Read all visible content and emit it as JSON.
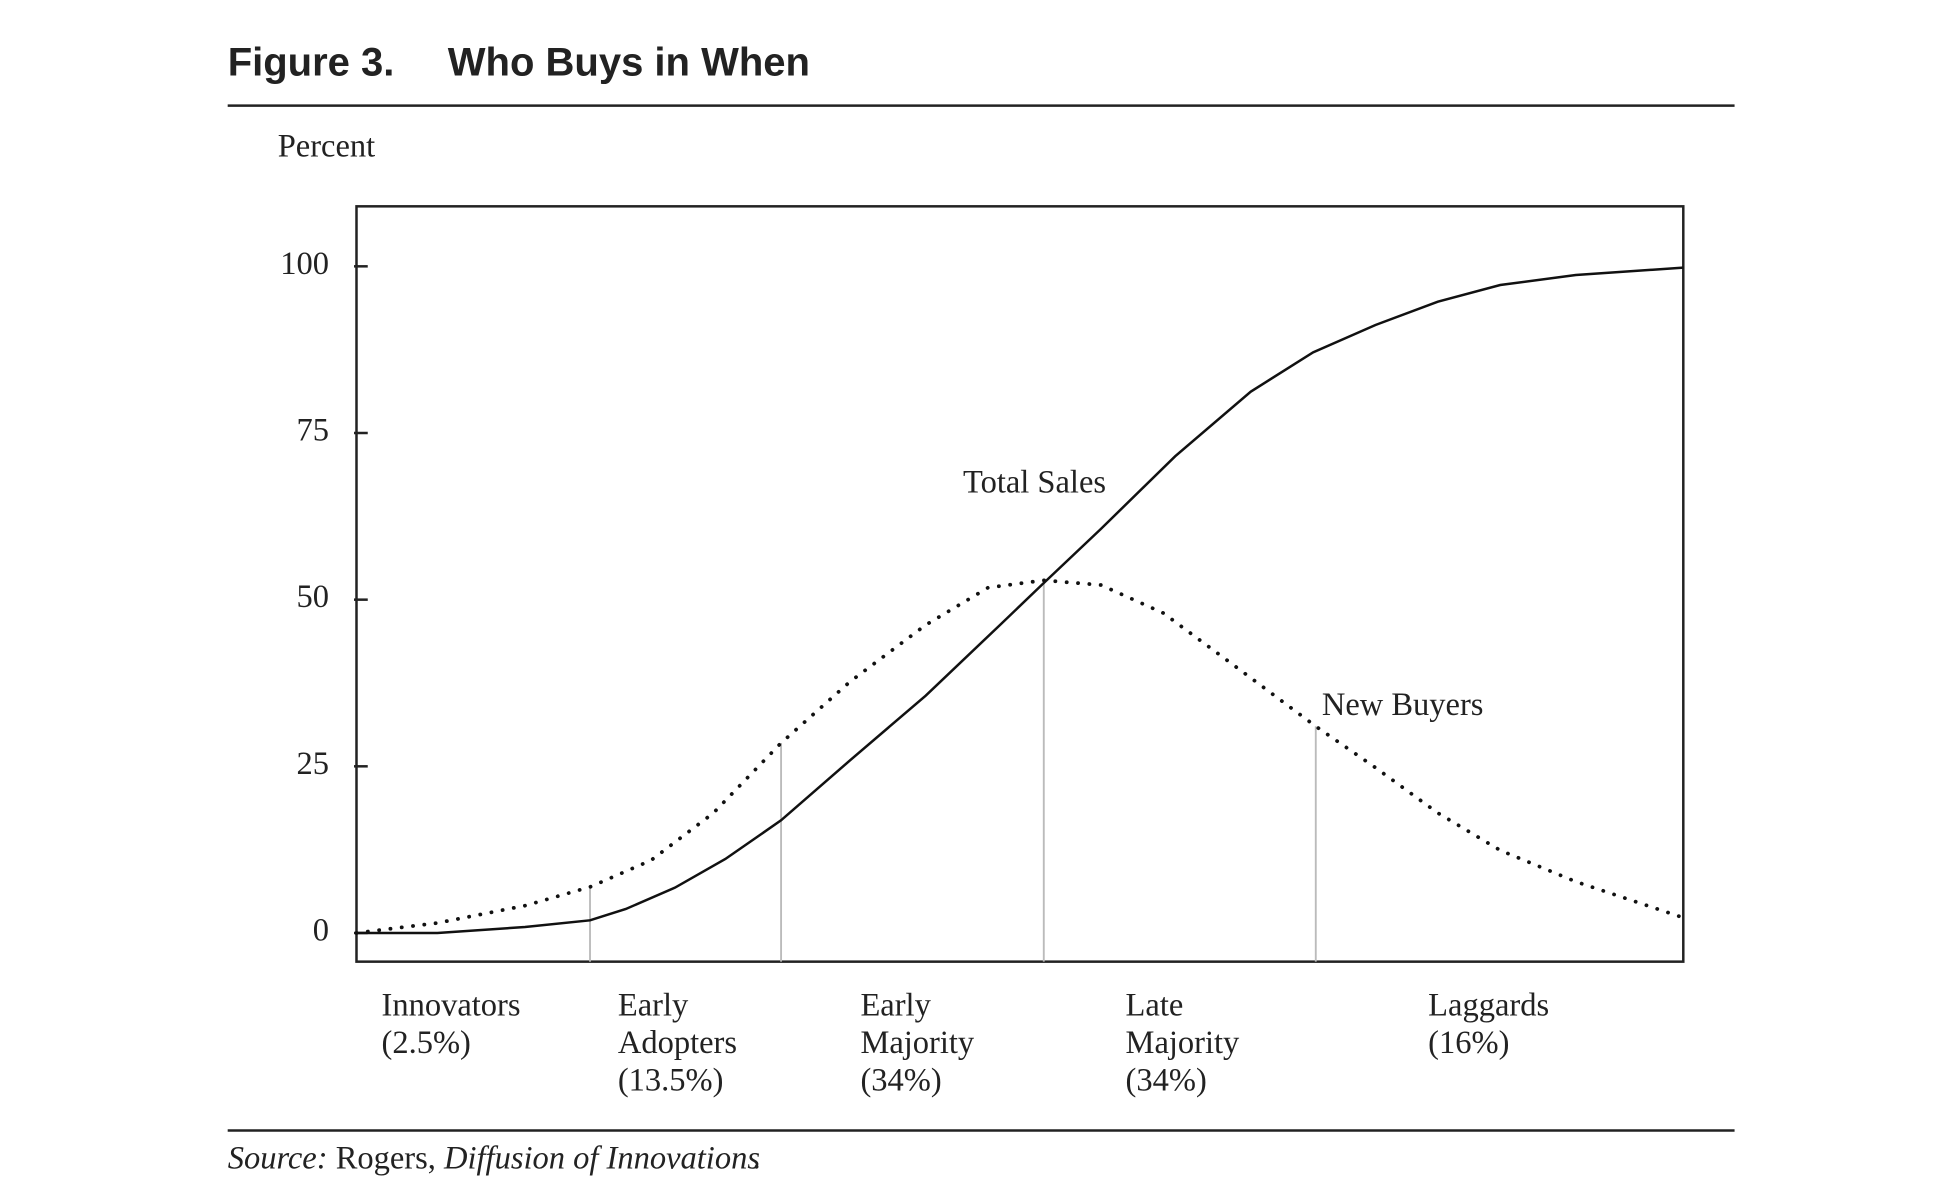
{
  "chart_data": {
    "type": "line",
    "figure_label": "Figure 3.",
    "title": "Who Buys in When",
    "y_label": "Percent",
    "ylim": [
      -4.3,
      109
    ],
    "yticks": [
      0,
      25,
      50,
      75,
      100
    ],
    "xlim": [
      0,
      100
    ],
    "series": [
      {
        "name": "Total Sales",
        "color": "#111111",
        "style": "solid",
        "x": [
          0,
          6.1,
          12.7,
          17.6,
          20.3,
          24.0,
          27.8,
          32.0,
          37.2,
          42.9,
          48.5,
          51.8,
          56.1,
          61.7,
          67.4,
          72.1,
          76.8,
          81.5,
          86.2,
          91.9,
          100
        ],
        "values": [
          0,
          0,
          0.9,
          1.9,
          3.6,
          6.8,
          11.1,
          16.9,
          25.9,
          35.6,
          46.2,
          52.5,
          60.6,
          71.5,
          81.2,
          87.1,
          91.2,
          94.7,
          97.2,
          98.7,
          99.8
        ]
      },
      {
        "name": "New Buyers",
        "color": "#111111",
        "style": "dotted",
        "x": [
          0,
          6.1,
          12.7,
          17.6,
          22.2,
          26.9,
          32.0,
          37.2,
          42.9,
          47.6,
          51.8,
          56.1,
          60.8,
          66.5,
          72.3,
          76.8,
          81.5,
          86.2,
          91.9,
          100
        ],
        "values": [
          0,
          1.5,
          4.1,
          6.9,
          10.9,
          18.0,
          28.5,
          37.7,
          46.2,
          51.8,
          52.9,
          52.2,
          48.0,
          39.6,
          31.0,
          24.8,
          18.0,
          12.4,
          7.7,
          2.3
        ]
      }
    ],
    "dividers": {
      "color": "#bbbbbb",
      "x": [
        17.6,
        32.0,
        51.8,
        72.3
      ],
      "values": [
        6.9,
        28.5,
        52.5,
        31.0
      ]
    },
    "segments": [
      [
        "Innovators",
        "(2.5%)"
      ],
      [
        "Early",
        "Adopters",
        "(13.5%)"
      ],
      [
        "Early",
        "Majority",
        "(34%)"
      ],
      [
        "Late",
        "Majority",
        "(34%)"
      ],
      [
        "Laggards",
        "(16%)"
      ]
    ],
    "source": [
      "Source:",
      "Rogers,",
      "Diffusion of Innovations",
      "."
    ]
  }
}
